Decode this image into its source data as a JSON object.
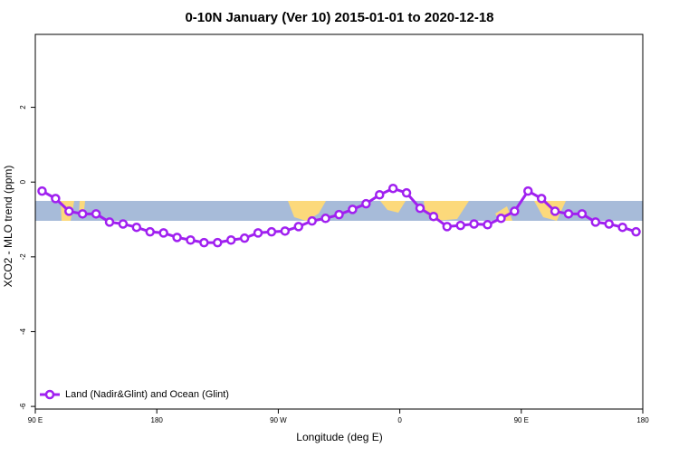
{
  "chart_data": {
    "type": "line",
    "title": "0-10N January (Ver 10)   2015-01-01 to 2020-12-18",
    "x_label": "Longitude (deg E)",
    "y_label": "XCO2 - MLO trend (ppm)",
    "xlim": [
      90,
      540
    ],
    "ylim": [
      -6.07,
      3.95
    ],
    "xticks": [
      {
        "value": 90,
        "label": "90 E"
      },
      180,
      {
        "value": 270,
        "label": "90 W"
      },
      {
        "value": 360,
        "label": "0"
      },
      {
        "value": 450,
        "label": "90 E"
      },
      {
        "value": 540,
        "label": "180"
      }
    ],
    "yticks": [
      -6,
      -4,
      -2,
      0,
      2
    ],
    "legend": "bottom-left",
    "series": [
      {
        "name": "Land (Nadir&Glint) and Ocean (Glint)",
        "color": "#a020f0",
        "x": [
          95,
          105,
          115,
          125,
          135,
          145,
          155,
          165,
          175,
          185,
          195,
          205,
          215,
          225,
          235,
          245,
          255,
          265,
          275,
          285,
          295,
          305,
          315,
          325,
          335,
          345,
          355,
          365,
          375,
          385,
          395,
          405,
          415,
          425,
          435,
          445,
          455,
          465,
          475,
          485,
          495,
          505,
          515,
          525,
          535
        ],
        "values": [
          -0.24,
          -0.44,
          -0.78,
          -0.85,
          -0.85,
          -1.07,
          -1.12,
          -1.21,
          -1.33,
          -1.36,
          -1.48,
          -1.55,
          -1.62,
          -1.62,
          -1.55,
          -1.5,
          -1.36,
          -1.33,
          -1.31,
          -1.19,
          -1.04,
          -0.97,
          -0.87,
          -0.73,
          -0.58,
          -0.34,
          -0.17,
          -0.29,
          -0.7,
          -0.92,
          -1.19,
          -1.16,
          -1.12,
          -1.14,
          -0.97,
          -0.78,
          -0.24,
          -0.44,
          -0.78,
          -0.85,
          -0.85,
          -1.07,
          -1.12,
          -1.21,
          -1.33
        ]
      }
    ]
  }
}
